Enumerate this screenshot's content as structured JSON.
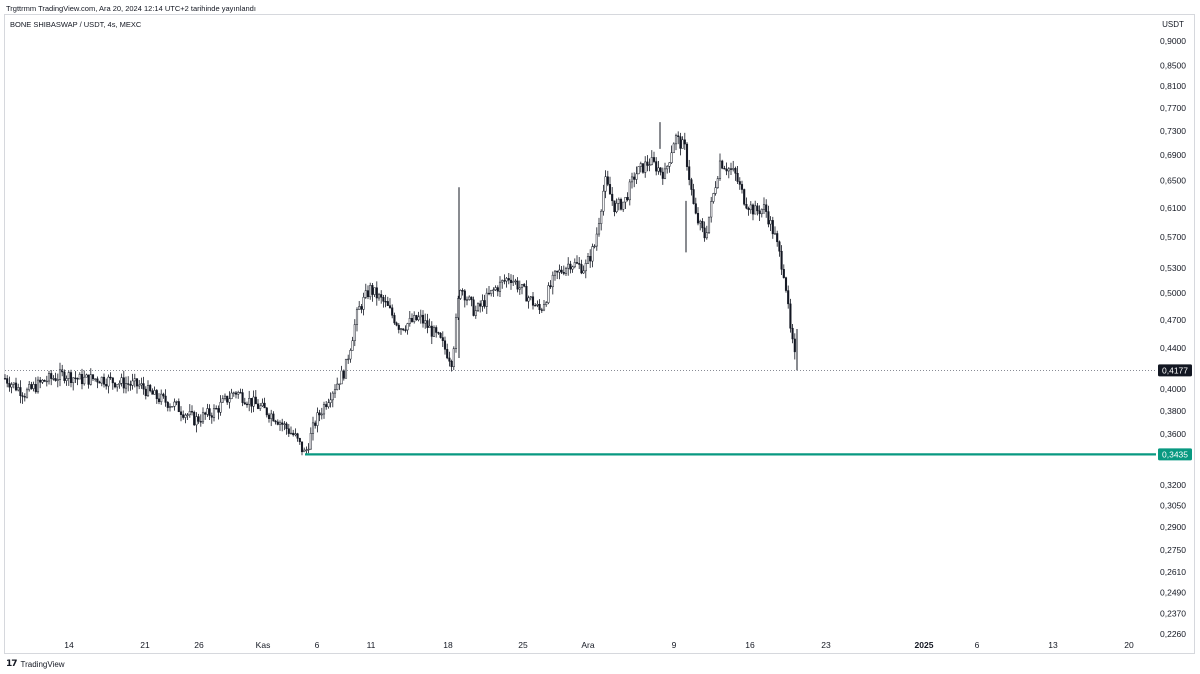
{
  "header": {
    "published_line": "Trgttrmm TradingView.com, Ara 20, 2024 12:14 UTC+2 tarihinde yayınlandı",
    "symbol_line": "BONE SHIBASWAP / USDT, 4s, MEXC",
    "currency": "USDT"
  },
  "footer": {
    "brand": "TradingView",
    "logo_icon": "tradingview-logo-icon"
  },
  "colors": {
    "candles": "#131722",
    "support_line": "#089981",
    "last_price_bg": "#131722",
    "support_label_bg": "#089981",
    "grid_border": "#d6d8dd"
  },
  "chart_data": {
    "type": "candlestick",
    "title": "BONE SHIBASWAP / USDT, 4s, MEXC",
    "price_axis": {
      "scale": "log",
      "unit": "USDT",
      "ticks": [
        "0,9000",
        "0,8500",
        "0,8100",
        "0,7700",
        "0,7300",
        "0,6900",
        "0,6500",
        "0,6100",
        "0,5700",
        "0,5300",
        "0,5000",
        "0,4700",
        "0,4400",
        "0,4000",
        "0,3800",
        "0,3600",
        "0,3200",
        "0,3050",
        "0,2900",
        "0,2750",
        "0,2610",
        "0,2490",
        "0,2370",
        "0,2260"
      ]
    },
    "time_axis": {
      "ticks": [
        "14",
        "21",
        "26",
        "Kas",
        "6",
        "11",
        "18",
        "25",
        "Ara",
        "9",
        "16",
        "23",
        "2025",
        "6",
        "13",
        "20"
      ],
      "bold_ticks": [
        "2025"
      ]
    },
    "last_price": {
      "value": 0.4177,
      "label": "0,4177"
    },
    "support_line": {
      "value": 0.3435,
      "label": "0,3435",
      "start_date": "Kas 5"
    },
    "price_path": [
      {
        "date": "Eki 9",
        "close": 0.41
      },
      {
        "date": "Eki 11",
        "close": 0.396
      },
      {
        "date": "Eki 13",
        "close": 0.408
      },
      {
        "date": "Eki 15",
        "close": 0.414
      },
      {
        "date": "Eki 16",
        "close": 0.409
      },
      {
        "date": "Eki 18",
        "close": 0.41
      },
      {
        "date": "Eki 20",
        "close": 0.406
      },
      {
        "date": "Eki 22",
        "close": 0.403
      },
      {
        "date": "Eki 23",
        "close": 0.393
      },
      {
        "date": "Eki 25",
        "close": 0.385
      },
      {
        "date": "Eki 26",
        "close": 0.372
      },
      {
        "date": "Eki 28",
        "close": 0.38
      },
      {
        "date": "Eki 29",
        "close": 0.398
      },
      {
        "date": "Eki 31",
        "close": 0.386
      },
      {
        "date": "Kas 2",
        "close": 0.375
      },
      {
        "date": "Kas 4",
        "close": 0.358
      },
      {
        "date": "Kas 5",
        "close": 0.3435
      },
      {
        "date": "Kas 6",
        "close": 0.37
      },
      {
        "date": "Kas 7",
        "close": 0.395
      },
      {
        "date": "Kas 9",
        "close": 0.418
      },
      {
        "date": "Kas 10",
        "close": 0.48
      },
      {
        "date": "Kas 11",
        "close": 0.505
      },
      {
        "date": "Kas 13",
        "close": 0.488
      },
      {
        "date": "Kas 14",
        "close": 0.462
      },
      {
        "date": "Kas 16",
        "close": 0.472
      },
      {
        "date": "Kas 17",
        "close": 0.448
      },
      {
        "date": "Kas 18",
        "close": 0.427
      },
      {
        "date": "Kas 19",
        "close": 0.51
      },
      {
        "date": "Kas 20",
        "close": 0.478
      },
      {
        "date": "Kas 22",
        "close": 0.505
      },
      {
        "date": "Kas 24",
        "close": 0.52
      },
      {
        "date": "Kas 25",
        "close": 0.5
      },
      {
        "date": "Kas 26",
        "close": 0.48
      },
      {
        "date": "Kas 27",
        "close": 0.52
      },
      {
        "date": "Kas 28",
        "close": 0.537
      },
      {
        "date": "Kas 30",
        "close": 0.53
      },
      {
        "date": "Ara 1",
        "close": 0.56
      },
      {
        "date": "Ara 2",
        "close": 0.65
      },
      {
        "date": "Ara 3",
        "close": 0.61
      },
      {
        "date": "Ara 4",
        "close": 0.62
      },
      {
        "date": "Ara 5",
        "close": 0.66
      },
      {
        "date": "Ara 6",
        "close": 0.68
      },
      {
        "date": "Ara 7",
        "close": 0.66
      },
      {
        "date": "Ara 8",
        "close": 0.72
      },
      {
        "date": "Ara 9",
        "close": 0.7
      },
      {
        "date": "Ara 10",
        "close": 0.6
      },
      {
        "date": "Ara 11",
        "close": 0.57
      },
      {
        "date": "Ara 12",
        "close": 0.68
      },
      {
        "date": "Ara 13",
        "close": 0.66
      },
      {
        "date": "Ara 14",
        "close": 0.62
      },
      {
        "date": "Ara 15",
        "close": 0.605
      },
      {
        "date": "Ara 16",
        "close": 0.61
      },
      {
        "date": "Ara 17",
        "close": 0.57
      },
      {
        "date": "Ara 18",
        "close": 0.52
      },
      {
        "date": "Ara 19",
        "close": 0.46
      },
      {
        "date": "Ara 20",
        "close": 0.4177
      }
    ]
  }
}
